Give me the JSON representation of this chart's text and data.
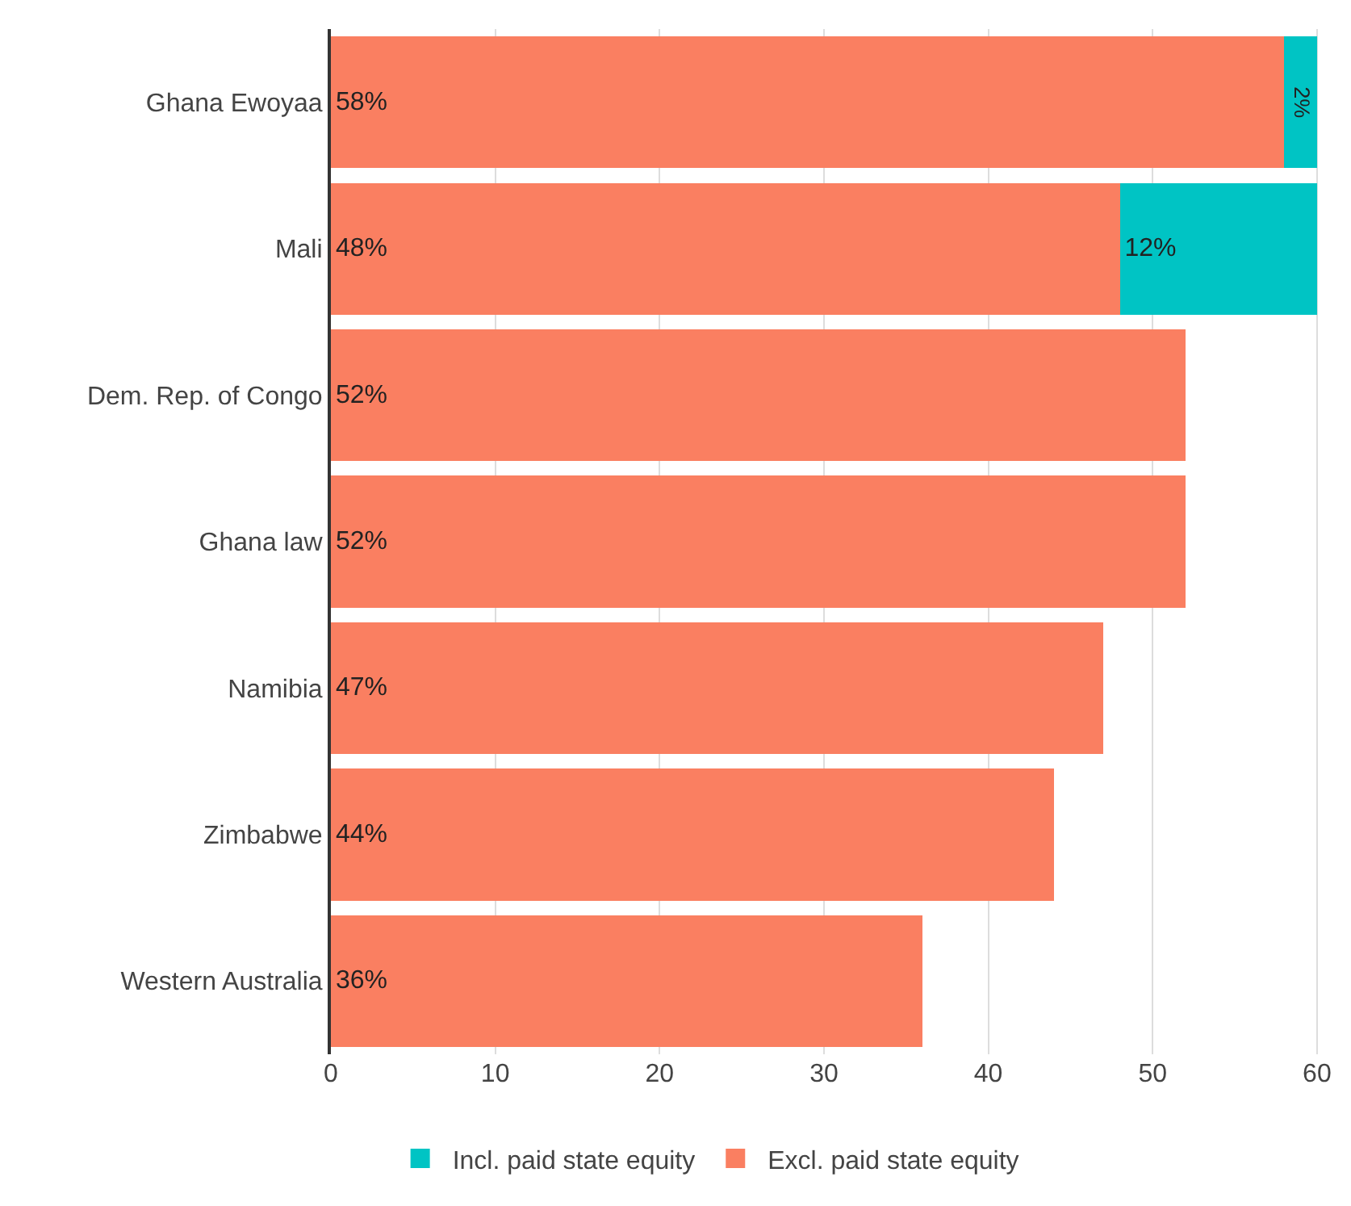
{
  "chart_data": {
    "type": "bar",
    "orientation": "horizontal",
    "stacked": true,
    "categories": [
      "Ghana Ewoyaa",
      "Mali",
      "Dem. Rep. of Congo",
      "Ghana law",
      "Namibia",
      "Zimbabwe",
      "Western Australia"
    ],
    "series": [
      {
        "name": "Excl. paid state equity",
        "color": "#fa7f61",
        "values": [
          58,
          48,
          52,
          52,
          47,
          44,
          36
        ],
        "value_labels": [
          "58%",
          "48%",
          "52%",
          "52%",
          "47%",
          "44%",
          "36%"
        ]
      },
      {
        "name": "Incl. paid state equity",
        "color": "#00c4c4",
        "values": [
          2,
          12,
          null,
          null,
          null,
          null,
          null
        ],
        "value_labels": [
          "2%",
          "12%",
          null,
          null,
          null,
          null,
          null
        ]
      }
    ],
    "xlim": [
      0,
      60.3
    ],
    "xticks": [
      0,
      10,
      20,
      30,
      40,
      50,
      60
    ],
    "grid": "x",
    "legend": "bottom"
  }
}
